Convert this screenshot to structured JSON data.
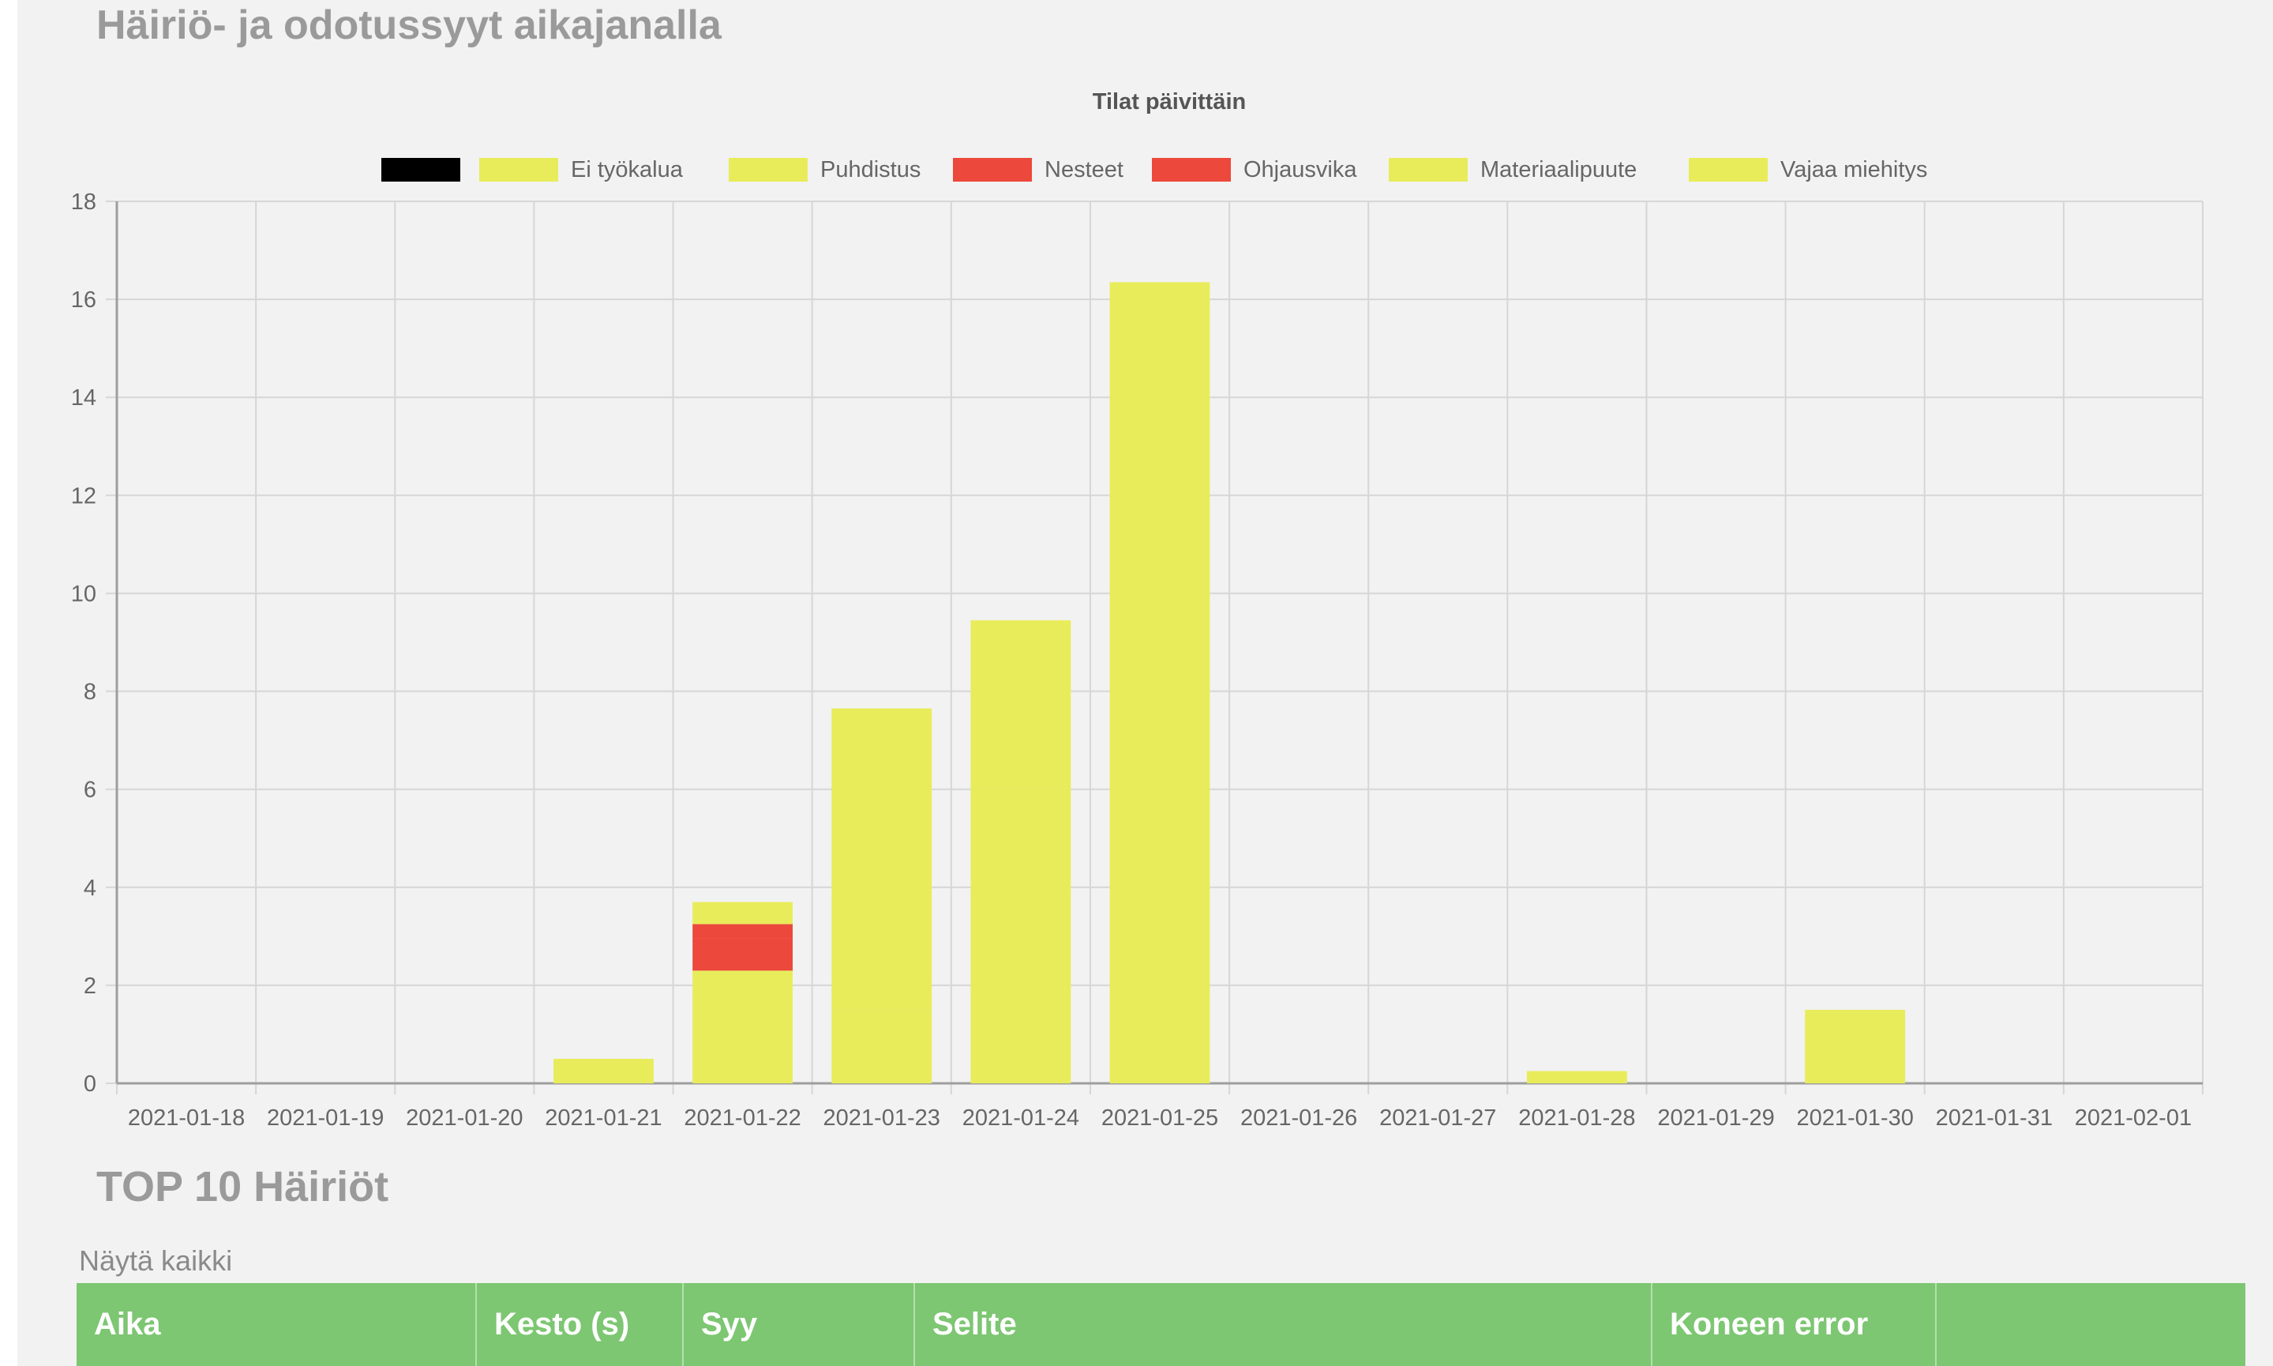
{
  "section_title": "Häiriö- ja odotussyyt aikajanalla",
  "chart_data": {
    "type": "bar",
    "stacked": true,
    "title": "Tilat päivittäin",
    "xlabel": "",
    "ylabel": "",
    "ylim": [
      0,
      18
    ],
    "yticks": [
      0,
      2,
      4,
      6,
      8,
      10,
      12,
      14,
      16,
      18
    ],
    "grid": true,
    "legend_position": "top",
    "categories": [
      "2021-01-18",
      "2021-01-19",
      "2021-01-20",
      "2021-01-21",
      "2021-01-22",
      "2021-01-23",
      "2021-01-24",
      "2021-01-25",
      "2021-01-26",
      "2021-01-27",
      "2021-01-28",
      "2021-01-29",
      "2021-01-30",
      "2021-01-31",
      "2021-02-01"
    ],
    "series": [
      {
        "name": "",
        "color": "#000000",
        "values": [
          0,
          0,
          0,
          0,
          0,
          0,
          0,
          0,
          0,
          0,
          0,
          0,
          0,
          0,
          0
        ]
      },
      {
        "name": "Ei työkalua",
        "color": "#e8ec5a",
        "values": [
          0,
          0,
          0,
          0.5,
          2.3,
          1.5,
          6.0,
          16.35,
          0,
          0,
          0.25,
          0,
          1.5,
          0,
          0
        ]
      },
      {
        "name": "Puhdistus",
        "color": "#e8ec5a",
        "values": [
          0,
          0,
          0,
          0,
          0,
          6.15,
          3.45,
          0,
          0,
          0,
          0,
          0,
          0,
          0,
          0
        ]
      },
      {
        "name": "Nesteet",
        "color": "#ec483c",
        "values": [
          0,
          0,
          0,
          0,
          0.65,
          0,
          0,
          0,
          0,
          0,
          0,
          0,
          0,
          0,
          0
        ]
      },
      {
        "name": "Ohjausvika",
        "color": "#ec483c",
        "values": [
          0,
          0,
          0,
          0,
          0.3,
          0,
          0,
          0,
          0,
          0,
          0,
          0,
          0,
          0,
          0
        ]
      },
      {
        "name": "Materiaalipuute",
        "color": "#e8ec5a",
        "values": [
          0,
          0,
          0,
          0,
          0.45,
          0,
          0,
          0,
          0,
          0,
          0,
          0,
          0,
          0,
          0
        ]
      },
      {
        "name": "Vajaa miehitys",
        "color": "#e8ec5a",
        "values": [
          0,
          0,
          0,
          0,
          0,
          0,
          0,
          0,
          0,
          0,
          0,
          0,
          0,
          0,
          0
        ]
      }
    ]
  },
  "top10": {
    "title": "TOP 10 Häiriöt",
    "show_all_label": "Näytä kaikki",
    "columns": [
      "Aika",
      "Kesto (s)",
      "Syy",
      "Selite",
      "Koneen error",
      ""
    ]
  },
  "colors": {
    "background": "#f2f2f2",
    "header_green": "#7dc672",
    "bar_yellow": "#e8ec5a",
    "bar_red": "#ec483c",
    "grid": "#d6d6d6",
    "muted_text": "#9a9a9a"
  }
}
